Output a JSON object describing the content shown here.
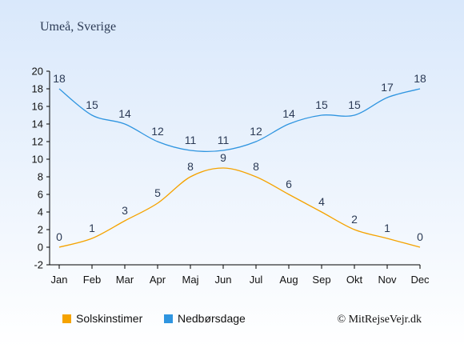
{
  "colors": {
    "background_top": "#d9e8fb",
    "background_bottom": "#ffffff",
    "sun": "#f5a300",
    "rain": "#2f95e0",
    "axis": "#000000"
  },
  "chart_data": {
    "type": "line",
    "title": "Umeå, Sverige",
    "xlabel": "",
    "ylabel": "",
    "categories": [
      "Jan",
      "Feb",
      "Mar",
      "Apr",
      "Maj",
      "Jun",
      "Jul",
      "Aug",
      "Sep",
      "Okt",
      "Nov",
      "Dec"
    ],
    "ylim": [
      -2,
      20
    ],
    "yticks": [
      -2,
      0,
      2,
      4,
      6,
      8,
      10,
      12,
      14,
      16,
      18,
      20
    ],
    "grid": false,
    "legend_position": "bottom",
    "series": [
      {
        "name": "Solskinstimer",
        "color": "#f5a300",
        "values": [
          0,
          1,
          3,
          5,
          8,
          9,
          8,
          6,
          4,
          2,
          1,
          0
        ]
      },
      {
        "name": "Nedbørsdage",
        "color": "#2f95e0",
        "values": [
          18,
          15,
          14,
          12,
          11,
          11,
          12,
          14,
          15,
          15,
          17,
          18
        ]
      }
    ],
    "credit": "© MitRejseVejr.dk"
  }
}
